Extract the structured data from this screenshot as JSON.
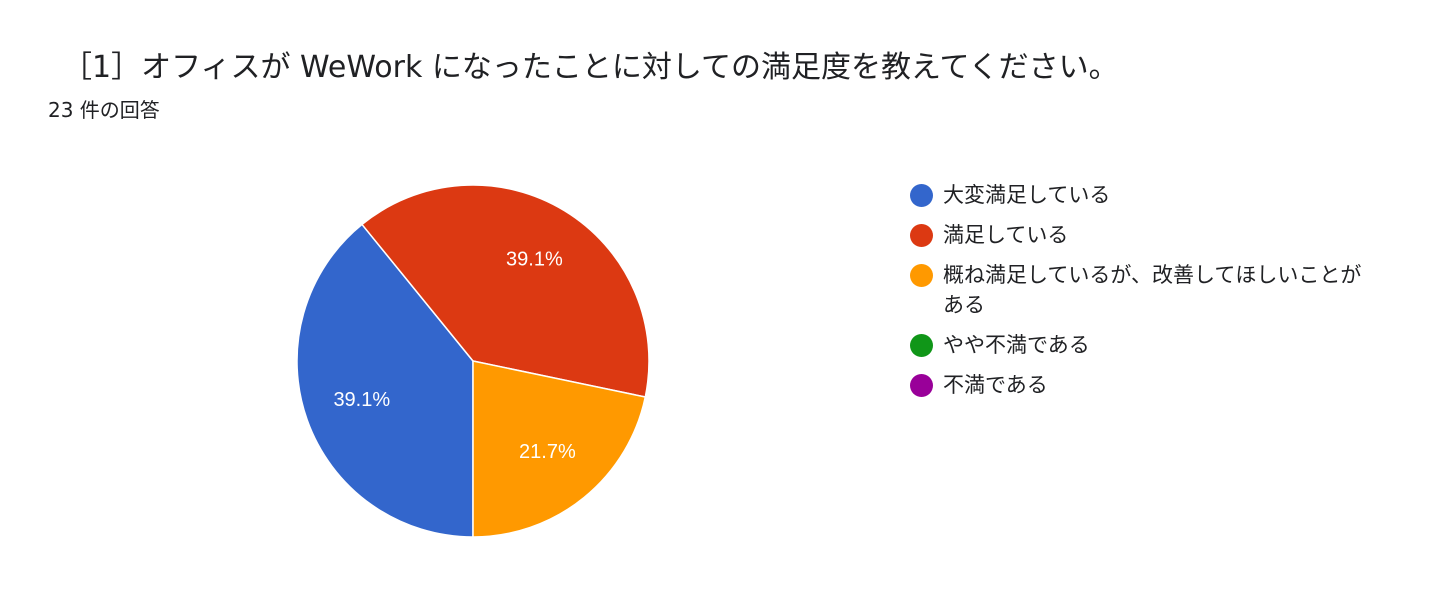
{
  "header": {
    "title": "［1］オフィスが WeWork になったことに対しての満足度を教えてください。",
    "response_count": "23 件の回答"
  },
  "chart_data": {
    "type": "pie",
    "total_responses": 23,
    "slices": [
      {
        "label": "大変満足している",
        "value": 39.1,
        "display": "39.1%",
        "color": "#3366cc"
      },
      {
        "label": "満足している",
        "value": 39.1,
        "display": "39.1%",
        "color": "#dc3912"
      },
      {
        "label": "概ね満足しているが、改善してほしいことがある",
        "value": 21.7,
        "display": "21.7%",
        "color": "#ff9900"
      },
      {
        "label": "やや不満である",
        "value": 0,
        "display": "",
        "color": "#109618"
      },
      {
        "label": "不満である",
        "value": 0,
        "display": "",
        "color": "#990099"
      }
    ],
    "start_angle_deg": 90,
    "direction": "clockwise",
    "legend_position": "right"
  }
}
